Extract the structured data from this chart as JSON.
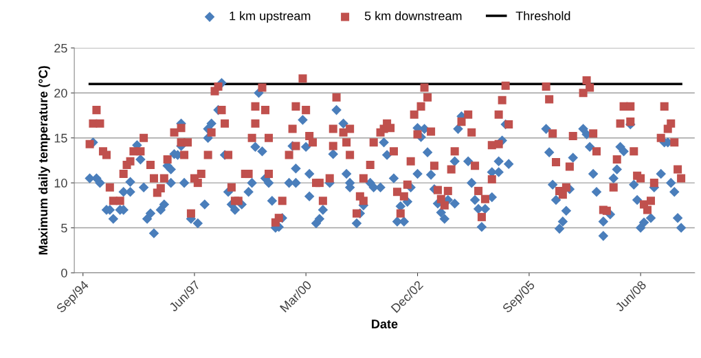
{
  "chart_data": {
    "type": "scatter",
    "xlabel": "Date",
    "ylabel": "Maximum daily temperature (°C)",
    "xlim": [
      "1994-06-15",
      "2009-10-01"
    ],
    "xticks": [
      {
        "value": "1994-09",
        "label": "Sep/94"
      },
      {
        "value": "1997-06",
        "label": "Jun/97"
      },
      {
        "value": "2000-03",
        "label": "Mar/00"
      },
      {
        "value": "2002-12",
        "label": "Dec/02"
      },
      {
        "value": "2005-09",
        "label": "Sep/05"
      },
      {
        "value": "2008-06",
        "label": "Jun/08"
      }
    ],
    "ylim": [
      0,
      25
    ],
    "yticks": [
      0,
      5,
      10,
      15,
      20,
      25
    ],
    "grid": "y",
    "legend": "top",
    "series": [
      {
        "name": "1 km upstream",
        "marker": "diamond",
        "color": "#4a7ebb",
        "x": [
          "1994-11",
          "1994-12",
          "1995-01",
          "1995-02",
          "1995-04",
          "1995-05",
          "1995-06",
          "1995-08",
          "1995-09",
          "1995-09",
          "1995-11",
          "1995-11",
          "1996-01",
          "1996-02",
          "1996-03",
          "1996-04",
          "1996-05",
          "1996-06",
          "1996-08",
          "1996-09",
          "1996-10",
          "1996-11",
          "1996-11",
          "1996-12",
          "1997-01",
          "1997-02",
          "1997-02",
          "1997-03",
          "1997-05",
          "1997-07",
          "1997-09",
          "1997-10",
          "1997-10",
          "1997-11",
          "1998-01",
          "1998-02",
          "1998-03",
          "1998-04",
          "1998-05",
          "1998-06",
          "1998-08",
          "1998-10",
          "1998-11",
          "1998-12",
          "1999-01",
          "1999-02",
          "1999-03",
          "1999-04",
          "1999-05",
          "1999-06",
          "1999-07",
          "1999-08",
          "1999-10",
          "1999-11",
          "1999-12",
          "1999-12",
          "2000-02",
          "2000-03",
          "2000-04",
          "2000-04",
          "2000-06",
          "2000-07",
          "2000-08",
          "2000-10",
          "2000-11",
          "2000-12",
          "2001-02",
          "2001-03",
          "2001-04",
          "2001-04",
          "2001-06",
          "2001-07",
          "2001-08",
          "2001-10",
          "2001-11",
          "2002-01",
          "2002-02",
          "2002-03",
          "2002-05",
          "2002-06",
          "2002-07",
          "2002-08",
          "2002-09",
          "2002-10",
          "2002-12",
          "2002-12",
          "2003-01",
          "2003-02",
          "2003-03",
          "2003-04",
          "2003-05",
          "2003-06",
          "2003-07",
          "2003-08",
          "2003-09",
          "2003-11",
          "2003-11",
          "2003-12",
          "2004-01",
          "2004-03",
          "2004-04",
          "2004-05",
          "2004-06",
          "2004-07",
          "2004-08",
          "2004-10",
          "2004-10",
          "2004-12",
          "2004-12",
          "2005-01",
          "2005-02",
          "2005-03",
          "2006-02",
          "2006-03",
          "2006-04",
          "2006-05",
          "2006-06",
          "2006-07",
          "2006-08",
          "2006-09",
          "2006-10",
          "2007-01",
          "2007-02",
          "2007-03",
          "2007-04",
          "2007-05",
          "2007-07",
          "2007-07",
          "2007-09",
          "2007-10",
          "2007-11",
          "2007-12",
          "2008-01",
          "2008-03",
          "2008-04",
          "2008-05",
          "2008-06",
          "2008-07",
          "2008-09",
          "2008-10",
          "2008-12",
          "2009-01",
          "2009-02",
          "2009-03",
          "2009-04",
          "2009-05",
          "2009-06"
        ],
        "values": [
          10.5,
          14.5,
          10.5,
          10,
          7,
          7,
          6,
          7,
          7,
          9,
          10.1,
          9,
          14.2,
          12.6,
          9.5,
          6,
          6.6,
          4.4,
          7,
          7.6,
          11.9,
          10,
          11.5,
          13.2,
          13.1,
          16.6,
          14.1,
          10,
          6,
          5.5,
          7.6,
          16,
          15,
          16.6,
          18.1,
          21.1,
          13.1,
          9,
          7.6,
          7,
          7.6,
          9,
          10,
          14,
          20,
          13.5,
          10.5,
          10,
          8,
          5,
          5.1,
          6.1,
          10,
          14.1,
          10,
          11.6,
          17,
          14,
          11,
          8.5,
          5.5,
          6,
          7,
          10,
          13.2,
          18.1,
          16.6,
          11,
          10,
          9.5,
          5.5,
          6.6,
          7.5,
          10,
          9.5,
          9.5,
          14.5,
          13.1,
          10.5,
          5.7,
          7.4,
          5.7,
          7.9,
          9.5,
          11,
          16.1,
          15.1,
          16,
          13.4,
          10.9,
          9.3,
          7.7,
          6.7,
          6,
          8.1,
          7.7,
          12.4,
          16,
          17.4,
          12.4,
          10,
          8.1,
          7.1,
          5.1,
          7.1,
          8.4,
          11.2,
          11.2,
          12.4,
          14.7,
          16.5,
          12.1,
          16,
          13.4,
          9.8,
          8.1,
          4.9,
          5.7,
          6.9,
          9.3,
          12.8,
          16,
          15.4,
          14,
          11,
          9,
          4.1,
          5.7,
          6.5,
          10.5,
          11.5,
          14,
          13.5,
          16.5,
          9.8,
          8.1,
          5,
          5.6,
          6.1,
          9.5,
          11,
          14.5,
          14.5,
          10,
          9,
          6.1,
          5
        ]
      },
      {
        "name": "5 km downstream",
        "marker": "square",
        "color": "#c0504d",
        "x": [
          "1994-11",
          "1994-12",
          "1995-01",
          "1995-02",
          "1995-03",
          "1995-04",
          "1995-05",
          "1995-06",
          "1995-08",
          "1995-09",
          "1995-10",
          "1995-11",
          "1995-12",
          "1996-02",
          "1996-03",
          "1996-05",
          "1996-06",
          "1996-07",
          "1996-08",
          "1996-09",
          "1996-10",
          "1996-12",
          "1997-02",
          "1997-02",
          "1997-03",
          "1997-04",
          "1997-05",
          "1997-06",
          "1997-07",
          "1997-08",
          "1997-10",
          "1997-11",
          "1997-12",
          "1998-01",
          "1998-02",
          "1998-03",
          "1998-04",
          "1998-05",
          "1998-06",
          "1998-07",
          "1998-09",
          "1998-10",
          "1998-11",
          "1998-12",
          "1998-12",
          "1999-02",
          "1999-03",
          "1999-04",
          "1999-04",
          "1999-06",
          "1999-07",
          "1999-08",
          "1999-10",
          "1999-11",
          "1999-12",
          "1999-12",
          "2000-02",
          "2000-03",
          "2000-04",
          "2000-05",
          "2000-06",
          "2000-07",
          "2000-08",
          "2000-10",
          "2000-11",
          "2000-11",
          "2000-12",
          "2001-02",
          "2001-03",
          "2001-04",
          "2001-04",
          "2001-06",
          "2001-07",
          "2001-08",
          "2001-08",
          "2001-10",
          "2001-11",
          "2002-01",
          "2002-02",
          "2002-03",
          "2002-04",
          "2002-05",
          "2002-06",
          "2002-07",
          "2002-08",
          "2002-09",
          "2002-10",
          "2002-11",
          "2002-12",
          "2003-01",
          "2003-02",
          "2003-03",
          "2003-04",
          "2003-05",
          "2003-06",
          "2003-07",
          "2003-08",
          "2003-09",
          "2003-10",
          "2003-11",
          "2004-01",
          "2004-03",
          "2004-04",
          "2004-05",
          "2004-06",
          "2004-07",
          "2004-08",
          "2004-10",
          "2004-10",
          "2004-12",
          "2004-12",
          "2005-01",
          "2005-02",
          "2005-03",
          "2006-02",
          "2006-03",
          "2006-04",
          "2006-05",
          "2006-06",
          "2006-07",
          "2006-08",
          "2006-09",
          "2006-10",
          "2007-01",
          "2007-02",
          "2007-03",
          "2007-04",
          "2007-05",
          "2007-07",
          "2007-08",
          "2007-10",
          "2007-11",
          "2007-12",
          "2008-01",
          "2008-03",
          "2008-03",
          "2008-04",
          "2008-05",
          "2008-06",
          "2008-07",
          "2008-08",
          "2008-09",
          "2008-10",
          "2008-12",
          "2009-01",
          "2009-02",
          "2009-03",
          "2009-04",
          "2009-05",
          "2009-06"
        ],
        "values": [
          14.3,
          16.6,
          18.1,
          16.6,
          13.5,
          13.1,
          9.5,
          8,
          8,
          11,
          12,
          12.4,
          13.5,
          13.5,
          15,
          12,
          10.5,
          8.9,
          9.4,
          10.5,
          12.6,
          15.6,
          16.1,
          14.5,
          13.1,
          14.5,
          6.6,
          10.5,
          10,
          11,
          13.1,
          15.6,
          20.2,
          20.7,
          18.1,
          16.6,
          13.1,
          9.5,
          8,
          8,
          11,
          11,
          15,
          16.6,
          18.5,
          20.6,
          18.1,
          15,
          11,
          5.6,
          6.1,
          8,
          13.1,
          16,
          18.5,
          14.1,
          21.6,
          18.1,
          15.2,
          14.5,
          10,
          10,
          8,
          10.5,
          14.1,
          16,
          19.5,
          15.6,
          14.5,
          16,
          13.1,
          6.6,
          8.5,
          10.5,
          8,
          12,
          14.5,
          15.6,
          16,
          16.6,
          16.1,
          13.5,
          9,
          6.6,
          8.5,
          9.8,
          12.4,
          17.6,
          15.4,
          18.5,
          20.6,
          19.5,
          15.7,
          11.9,
          9.2,
          8.2,
          7.5,
          9.1,
          11.5,
          13.5,
          16.8,
          17.6,
          15.6,
          11.9,
          9.1,
          6.2,
          8.2,
          10.4,
          14.2,
          14.3,
          17.6,
          19.2,
          20.8,
          16.5,
          20.7,
          19.3,
          15.5,
          12.3,
          9.1,
          8.7,
          9.5,
          11.8,
          15.2,
          20,
          21.4,
          20.6,
          15.5,
          13.5,
          7,
          6.9,
          9.5,
          12.6,
          16.6,
          18.5,
          18.5,
          16.8,
          13.5,
          10.8,
          10.5,
          7.6,
          7,
          8,
          10,
          15,
          18.5,
          16,
          16.6,
          14.5,
          11.5,
          10.5
        ]
      },
      {
        "name": "Threshold",
        "type": "line",
        "line_style": "solid",
        "marker": "none",
        "color": "#000000",
        "x": [
          "1994-11",
          "2009-06"
        ],
        "values": [
          21,
          21
        ]
      }
    ]
  }
}
